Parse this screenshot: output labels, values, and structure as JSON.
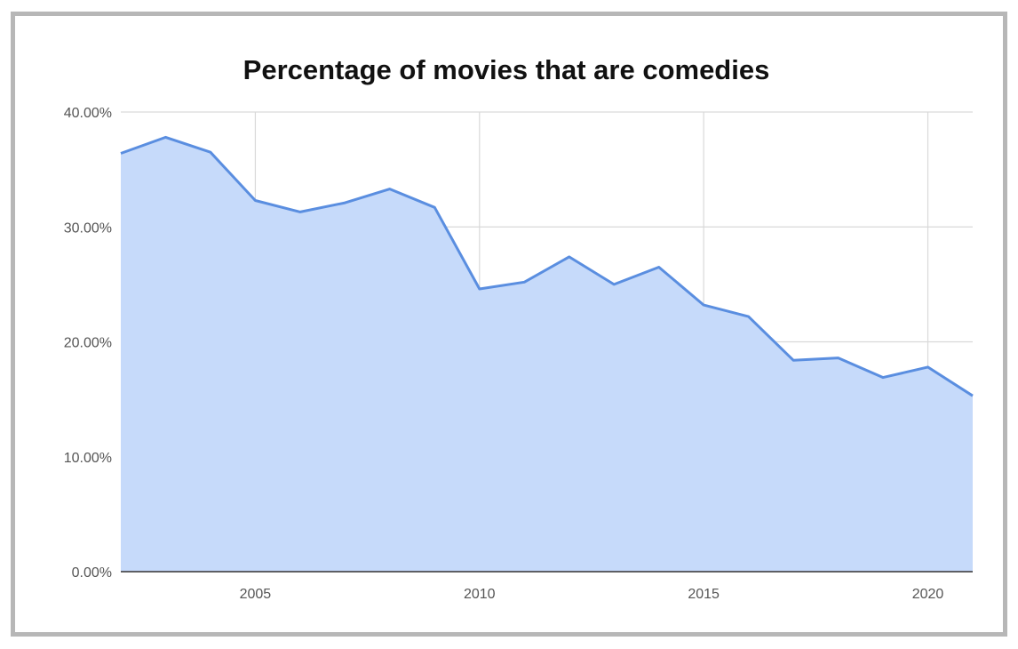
{
  "chart_data": {
    "type": "area",
    "title": "Percentage of movies that are comedies",
    "xlabel": "",
    "ylabel": "",
    "x": [
      2002,
      2003,
      2004,
      2005,
      2006,
      2007,
      2008,
      2009,
      2010,
      2011,
      2012,
      2013,
      2014,
      2015,
      2016,
      2017,
      2018,
      2019,
      2020,
      2021
    ],
    "series": [
      {
        "values": [
          36.4,
          37.8,
          36.5,
          32.3,
          31.3,
          32.1,
          33.3,
          31.7,
          24.6,
          25.2,
          27.4,
          25.0,
          26.5,
          23.2,
          22.2,
          18.4,
          18.6,
          16.9,
          17.8,
          15.3
        ]
      }
    ],
    "xlim": [
      2002,
      2021
    ],
    "ylim": [
      0,
      40
    ],
    "x_ticks": [
      2005,
      2010,
      2015,
      2020
    ],
    "x_tick_labels": [
      "2005",
      "2010",
      "2015",
      "2020"
    ],
    "y_ticks": [
      0,
      10,
      20,
      30,
      40
    ],
    "y_tick_labels": [
      "0.00%",
      "10.00%",
      "20.00%",
      "30.00%",
      "40.00%"
    ],
    "grid": true,
    "legend": "none",
    "colors": {
      "line": "#5a8ee0",
      "fill": "#c6dafa",
      "grid": "#d9d9d9",
      "axis": "#333333"
    }
  }
}
